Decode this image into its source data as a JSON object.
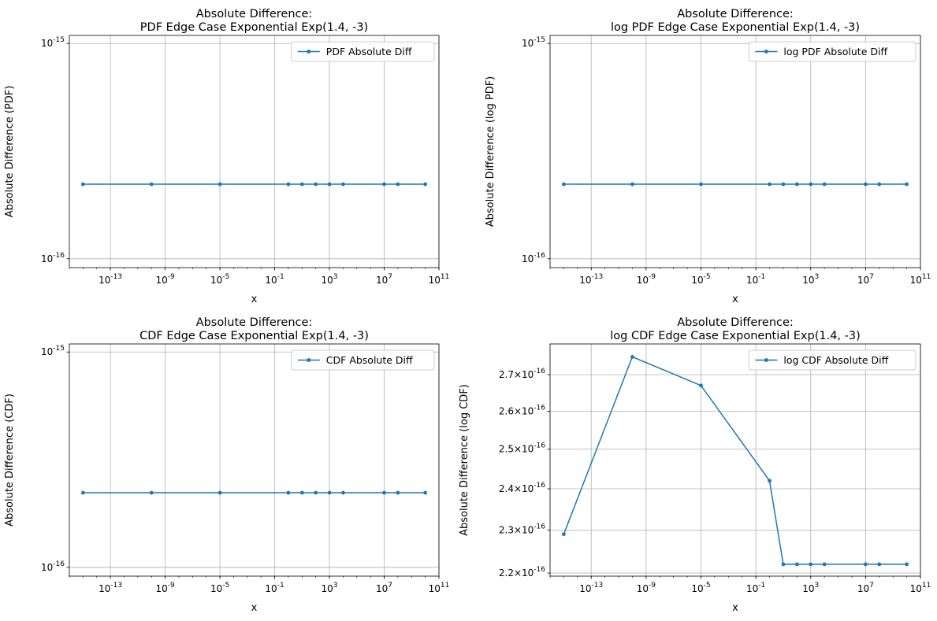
{
  "chart_data": [
    {
      "type": "line",
      "title_line1": "Absolute Difference:",
      "title_line2": "PDF Edge Case Exponential Exp(1.4, -3)",
      "xlabel": "x",
      "ylabel": "Absolute Difference (PDF)",
      "xscale": "log",
      "yscale": "log",
      "xlim": [
        1e-16,
        100000000000.0
      ],
      "ylim": [
        9.1e-17,
        1.09e-15
      ],
      "xticks": [
        -13,
        -9,
        -5,
        -1,
        3,
        7,
        11
      ],
      "xtick_labels": [
        "10^-13",
        "10^-9",
        "10^-5",
        "10^-1",
        "10^3",
        "10^7",
        "10^11"
      ],
      "yticks": [
        1e-16,
        1e-15
      ],
      "ytick_labels": [
        "10^-16",
        "10^-15"
      ],
      "grid": true,
      "legend_position": "upper right",
      "series": [
        {
          "name": "PDF Absolute Diff",
          "color": "#1f77b4",
          "x": [
            1e-15,
            1e-10,
            1e-05,
            1,
            10,
            100,
            1000,
            10000,
            10000000.0,
            100000000.0,
            10000000000.0
          ],
          "y": [
            2.22e-16,
            2.22e-16,
            2.22e-16,
            2.22e-16,
            2.22e-16,
            2.22e-16,
            2.22e-16,
            2.22e-16,
            2.22e-16,
            2.22e-16,
            2.22e-16
          ]
        }
      ]
    },
    {
      "type": "line",
      "title_line1": "Absolute Difference:",
      "title_line2": "log PDF Edge Case Exponential Exp(1.4, -3)",
      "xlabel": "x",
      "ylabel": "Absolute Difference (log PDF)",
      "xscale": "log",
      "yscale": "log",
      "xlim": [
        1e-16,
        100000000000.0
      ],
      "ylim": [
        9.1e-17,
        1.09e-15
      ],
      "xticks": [
        -13,
        -9,
        -5,
        -1,
        3,
        7,
        11
      ],
      "xtick_labels": [
        "10^-13",
        "10^-9",
        "10^-5",
        "10^-1",
        "10^3",
        "10^7",
        "10^11"
      ],
      "yticks": [
        1e-16,
        1e-15
      ],
      "ytick_labels": [
        "10^-16",
        "10^-15"
      ],
      "grid": true,
      "legend_position": "upper right",
      "series": [
        {
          "name": "log PDF Absolute Diff",
          "color": "#1f77b4",
          "x": [
            1e-15,
            1e-10,
            1e-05,
            1,
            10,
            100,
            1000,
            10000,
            10000000.0,
            100000000.0,
            10000000000.0
          ],
          "y": [
            2.22e-16,
            2.22e-16,
            2.22e-16,
            2.22e-16,
            2.22e-16,
            2.22e-16,
            2.22e-16,
            2.22e-16,
            2.22e-16,
            2.22e-16,
            2.22e-16
          ]
        }
      ]
    },
    {
      "type": "line",
      "title_line1": "Absolute Difference:",
      "title_line2": "CDF Edge Case Exponential Exp(1.4, -3)",
      "xlabel": "x",
      "ylabel": "Absolute Difference (CDF)",
      "xscale": "log",
      "yscale": "log",
      "xlim": [
        1e-16,
        100000000000.0
      ],
      "ylim": [
        9.1e-17,
        1.09e-15
      ],
      "xticks": [
        -13,
        -9,
        -5,
        -1,
        3,
        7,
        11
      ],
      "xtick_labels": [
        "10^-13",
        "10^-9",
        "10^-5",
        "10^-1",
        "10^3",
        "10^7",
        "10^11"
      ],
      "yticks": [
        1e-16,
        1e-15
      ],
      "ytick_labels": [
        "10^-16",
        "10^-15"
      ],
      "grid": true,
      "legend_position": "upper right",
      "series": [
        {
          "name": "CDF Absolute Diff",
          "color": "#1f77b4",
          "x": [
            1e-15,
            1e-10,
            1e-05,
            1,
            10,
            100,
            1000,
            10000,
            10000000.0,
            100000000.0,
            10000000000.0
          ],
          "y": [
            2.22e-16,
            2.22e-16,
            2.22e-16,
            2.22e-16,
            2.22e-16,
            2.22e-16,
            2.22e-16,
            2.22e-16,
            2.22e-16,
            2.22e-16,
            2.22e-16
          ]
        }
      ]
    },
    {
      "type": "line",
      "title_line1": "Absolute Difference:",
      "title_line2": "log CDF Edge Case Exponential Exp(1.4, -3)",
      "xlabel": "x",
      "ylabel": "Absolute Difference (log CDF)",
      "xscale": "log",
      "yscale": "log",
      "xlim": [
        1e-16,
        100000000000.0
      ],
      "ylim": [
        2.193e-16,
        2.787e-16
      ],
      "xticks": [
        -13,
        -9,
        -5,
        -1,
        3,
        7,
        11
      ],
      "xtick_labels": [
        "10^-13",
        "10^-9",
        "10^-5",
        "10^-1",
        "10^3",
        "10^7",
        "10^11"
      ],
      "yticks": [
        2.2e-16,
        2.3e-16,
        2.4e-16,
        2.5e-16,
        2.6e-16,
        2.7e-16
      ],
      "ytick_labels": [
        "2.2×10^-16",
        "2.3×10^-16",
        "2.4×10^-16",
        "2.5×10^-16",
        "2.6×10^-16",
        "2.7×10^-16"
      ],
      "grid": true,
      "legend_position": "upper right",
      "series": [
        {
          "name": "log CDF Absolute Diff",
          "color": "#1f77b4",
          "x": [
            1e-15,
            1e-10,
            1e-05,
            1,
            10,
            100,
            1000,
            10000,
            10000000.0,
            100000000.0,
            10000000000.0
          ],
          "y": [
            2.29e-16,
            2.75e-16,
            2.67e-16,
            2.42e-16,
            2.22e-16,
            2.22e-16,
            2.22e-16,
            2.22e-16,
            2.22e-16,
            2.22e-16,
            2.22e-16
          ]
        }
      ]
    }
  ]
}
